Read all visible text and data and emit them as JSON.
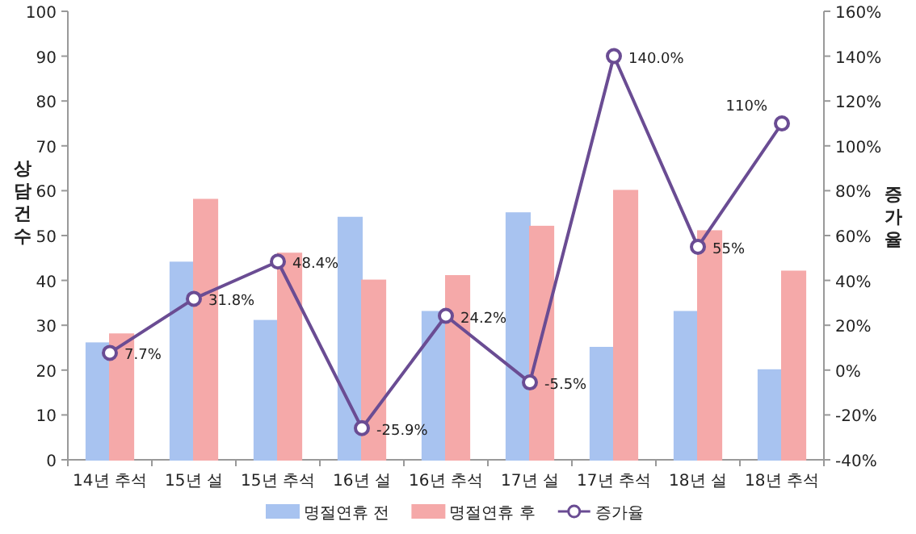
{
  "chart_data": {
    "type": "bar",
    "ylabel": "상담건수",
    "y2label": "증가율",
    "categories": [
      "14년 추석",
      "15년 설",
      "15년 추석",
      "16년 설",
      "16년 추석",
      "17년 설",
      "17년 추석",
      "18년 설",
      "18년 추석"
    ],
    "series": [
      {
        "name": "명절연휴 전",
        "color": "#a8c3f0",
        "values": [
          26,
          44,
          31,
          54,
          33,
          55,
          25,
          33,
          20
        ]
      },
      {
        "name": "명절연휴 후",
        "color": "#f5a9a9",
        "values": [
          28,
          58,
          46,
          40,
          41,
          52,
          60,
          51,
          42
        ]
      },
      {
        "name": "증가율",
        "type": "line",
        "axis": "y2",
        "color": "#6a4c93",
        "marker": "circle",
        "values": [
          7.7,
          31.8,
          48.4,
          -25.9,
          24.2,
          -5.5,
          140.0,
          55,
          110
        ],
        "value_labels": [
          "7.7%",
          "31.8%",
          "48.4%",
          "-25.9%",
          "24.2%",
          "-5.5%",
          "140.0%",
          "55%",
          "110%"
        ]
      }
    ],
    "ylim": [
      0,
      100
    ],
    "yticks": [
      0,
      10,
      20,
      30,
      40,
      50,
      60,
      70,
      80,
      90,
      100
    ],
    "y2lim": [
      -40,
      160
    ],
    "y2ticks": [
      {
        "value": -40,
        "label": "-40%"
      },
      {
        "value": -20,
        "label": "-20%"
      },
      {
        "value": 0,
        "label": "0%"
      },
      {
        "value": 20,
        "label": "20%"
      },
      {
        "value": 40,
        "label": "40%"
      },
      {
        "value": 60,
        "label": "60%"
      },
      {
        "value": 80,
        "label": "80%"
      },
      {
        "value": 100,
        "label": "100%"
      },
      {
        "value": 120,
        "label": "120%"
      },
      {
        "value": 140,
        "label": "140%"
      },
      {
        "value": 160,
        "label": "160%"
      }
    ],
    "legend": "bottom"
  }
}
